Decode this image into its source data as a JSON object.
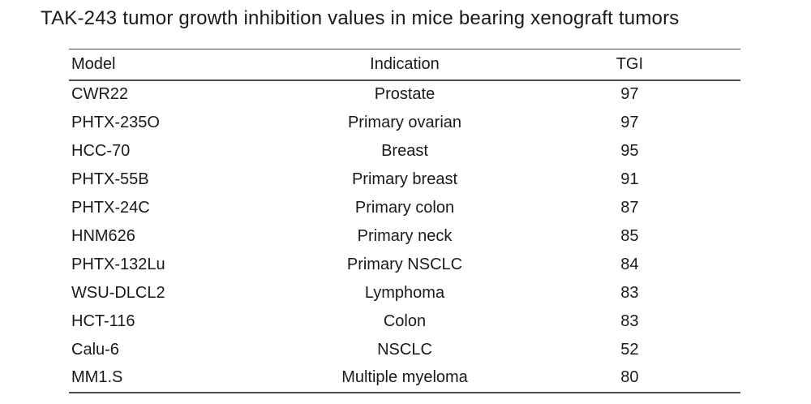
{
  "chart_data": {
    "type": "table",
    "title": "TAK-243 tumor growth inhibition values in mice bearing xenograft tumors",
    "columns": [
      "Model",
      "Indication",
      "TGI"
    ],
    "rows": [
      [
        "CWR22",
        "Prostate",
        "97"
      ],
      [
        "PHTX-235O",
        "Primary ovarian",
        "97"
      ],
      [
        "HCC-70",
        "Breast",
        "95"
      ],
      [
        "PHTX-55B",
        "Primary breast",
        "91"
      ],
      [
        "PHTX-24C",
        "Primary colon",
        "87"
      ],
      [
        "HNM626",
        "Primary neck",
        "85"
      ],
      [
        "PHTX-132Lu",
        "Primary NSCLC",
        "84"
      ],
      [
        "WSU-DLCL2",
        "Lymphoma",
        "83"
      ],
      [
        "HCT-116",
        "Colon",
        "83"
      ],
      [
        "Calu-6",
        "NSCLC",
        "52"
      ],
      [
        "MM1.S",
        "Multiple myeloma",
        "80"
      ]
    ],
    "layout": {
      "model_column_align": "left",
      "indication_column_align": "center",
      "tgi_column_align": "center",
      "rules": [
        "top",
        "below-header",
        "bottom"
      ]
    }
  },
  "colors": {
    "background": "#ffffff",
    "text": "#1a1a1a",
    "rule": "#4d4d4d"
  }
}
